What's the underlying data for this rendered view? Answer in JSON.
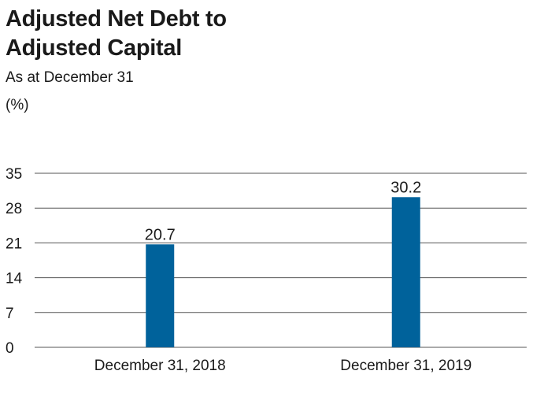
{
  "chart_data": {
    "type": "bar",
    "title": "Adjusted Net Debt to Adjusted Capital",
    "title_lines": [
      "Adjusted Net Debt to",
      "Adjusted Capital"
    ],
    "subtitle": "As at December 31",
    "unit": "(%)",
    "categories": [
      "December 31, 2018",
      "December 31, 2019"
    ],
    "values": [
      20.7,
      30.2
    ],
    "data_labels": [
      "20.7",
      "30.2"
    ],
    "ylim": [
      0,
      35
    ],
    "yticks": [
      0,
      7,
      14,
      21,
      28,
      35
    ],
    "grid": true,
    "bar_color": "#00629b",
    "grid_color": "#555555"
  }
}
